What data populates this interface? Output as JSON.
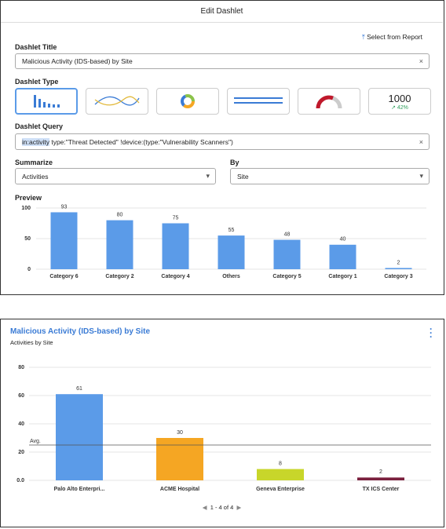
{
  "edit_dashlet": {
    "title": "Edit Dashlet",
    "select_from_report": "Select from Report",
    "dashlet_title_label": "Dashlet Title",
    "dashlet_title_value": "Malicious Activity (IDS-based) by Site",
    "dashlet_type_label": "Dashlet Type",
    "kpi_type_value": "1000",
    "kpi_type_change": "42%",
    "dashlet_query_label": "Dashlet Query",
    "dashlet_query_highlight": "in:activity",
    "dashlet_query_value": "type:\"Threat Detected\"  !device:(type:\"Vulnerability Scanners\")",
    "summarize_label": "Summarize",
    "summarize_value": "Activities",
    "by_label": "By",
    "by_value": "Site",
    "preview_label": "Preview"
  },
  "widget": {
    "pagination": "1 - 4 of 4"
  },
  "chart_data": [
    {
      "type": "bar",
      "categories": [
        "Category 6",
        "Category 2",
        "Category 4",
        "Others",
        "Category 5",
        "Category 1",
        "Category 3"
      ],
      "values": [
        93,
        80,
        75,
        55,
        48,
        40,
        2
      ],
      "color": "#5b9be8",
      "ylim": [
        0,
        100
      ],
      "yticks": [
        0,
        50,
        100
      ],
      "grid": true
    },
    {
      "type": "bar",
      "title": "Malicious Activity (IDS-based) by Site",
      "subtitle": "Activities by Site",
      "categories": [
        "Palo Alto Enterpri...",
        "ACME Hospital",
        "Geneva Enterprise",
        "TX ICS Center"
      ],
      "values": [
        61,
        30,
        8,
        2
      ],
      "colors": [
        "#5b9be8",
        "#f5a623",
        "#c8d62a",
        "#7a1f3d"
      ],
      "ylim": [
        0,
        80
      ],
      "yticks": [
        {
          "value": 0,
          "label": "0.0"
        },
        20,
        40,
        60,
        80
      ],
      "grid": true,
      "average": 25,
      "average_label": "Avg."
    }
  ]
}
